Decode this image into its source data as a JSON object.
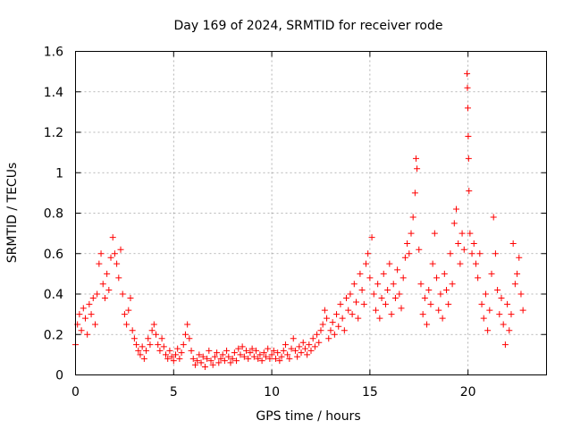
{
  "chart_data": {
    "type": "scatter",
    "title": "Day 169 of 2024, SRMTID for receiver rode",
    "xlabel": "GPS time / hours",
    "ylabel": "SRMTID / TECUs",
    "xlim": [
      0,
      24
    ],
    "ylim": [
      0,
      1.6
    ],
    "x_ticks": [
      0,
      5,
      10,
      15,
      20
    ],
    "x_tick_labels": [
      "0",
      "5",
      "10",
      "15",
      "20"
    ],
    "y_ticks": [
      0,
      0.2,
      0.4,
      0.6,
      0.8,
      1,
      1.2,
      1.4,
      1.6
    ],
    "y_tick_labels": [
      "0",
      "0.2",
      "0.4",
      "0.6",
      "0.8",
      "1",
      "1.2",
      "1.4",
      "1.6"
    ],
    "grid": true,
    "marker": "+",
    "color": "#ff0000",
    "series": [
      {
        "name": "SRMTID",
        "points": [
          [
            0.0,
            0.15
          ],
          [
            0.1,
            0.25
          ],
          [
            0.2,
            0.3
          ],
          [
            0.3,
            0.22
          ],
          [
            0.4,
            0.33
          ],
          [
            0.5,
            0.28
          ],
          [
            0.6,
            0.2
          ],
          [
            0.7,
            0.35
          ],
          [
            0.8,
            0.3
          ],
          [
            0.9,
            0.38
          ],
          [
            1.0,
            0.25
          ],
          [
            1.1,
            0.4
          ],
          [
            1.2,
            0.55
          ],
          [
            1.3,
            0.6
          ],
          [
            1.4,
            0.45
          ],
          [
            1.5,
            0.38
          ],
          [
            1.6,
            0.5
          ],
          [
            1.7,
            0.42
          ],
          [
            1.8,
            0.58
          ],
          [
            1.9,
            0.68
          ],
          [
            2.0,
            0.6
          ],
          [
            2.1,
            0.55
          ],
          [
            2.2,
            0.48
          ],
          [
            2.3,
            0.62
          ],
          [
            2.4,
            0.4
          ],
          [
            2.5,
            0.3
          ],
          [
            2.6,
            0.25
          ],
          [
            2.7,
            0.32
          ],
          [
            2.8,
            0.38
          ],
          [
            2.9,
            0.22
          ],
          [
            3.0,
            0.18
          ],
          [
            3.1,
            0.15
          ],
          [
            3.2,
            0.12
          ],
          [
            3.3,
            0.1
          ],
          [
            3.4,
            0.14
          ],
          [
            3.5,
            0.08
          ],
          [
            3.6,
            0.12
          ],
          [
            3.7,
            0.18
          ],
          [
            3.8,
            0.15
          ],
          [
            3.9,
            0.22
          ],
          [
            4.0,
            0.25
          ],
          [
            4.1,
            0.2
          ],
          [
            4.2,
            0.15
          ],
          [
            4.3,
            0.12
          ],
          [
            4.4,
            0.18
          ],
          [
            4.5,
            0.14
          ],
          [
            4.6,
            0.1
          ],
          [
            4.7,
            0.08
          ],
          [
            4.8,
            0.12
          ],
          [
            4.9,
            0.09
          ],
          [
            5.0,
            0.07
          ],
          [
            5.1,
            0.1
          ],
          [
            5.2,
            0.13
          ],
          [
            5.3,
            0.08
          ],
          [
            5.4,
            0.11
          ],
          [
            5.5,
            0.15
          ],
          [
            5.6,
            0.2
          ],
          [
            5.7,
            0.25
          ],
          [
            5.8,
            0.18
          ],
          [
            5.9,
            0.12
          ],
          [
            6.0,
            0.08
          ],
          [
            6.1,
            0.05
          ],
          [
            6.2,
            0.07
          ],
          [
            6.3,
            0.1
          ],
          [
            6.4,
            0.06
          ],
          [
            6.5,
            0.09
          ],
          [
            6.6,
            0.04
          ],
          [
            6.7,
            0.08
          ],
          [
            6.8,
            0.12
          ],
          [
            6.9,
            0.07
          ],
          [
            7.0,
            0.05
          ],
          [
            7.1,
            0.09
          ],
          [
            7.2,
            0.11
          ],
          [
            7.3,
            0.06
          ],
          [
            7.4,
            0.08
          ],
          [
            7.5,
            0.1
          ],
          [
            7.6,
            0.07
          ],
          [
            7.7,
            0.12
          ],
          [
            7.8,
            0.09
          ],
          [
            7.9,
            0.06
          ],
          [
            8.0,
            0.08
          ],
          [
            8.1,
            0.11
          ],
          [
            8.2,
            0.07
          ],
          [
            8.3,
            0.13
          ],
          [
            8.4,
            0.1
          ],
          [
            8.5,
            0.14
          ],
          [
            8.6,
            0.09
          ],
          [
            8.7,
            0.12
          ],
          [
            8.8,
            0.08
          ],
          [
            8.9,
            0.11
          ],
          [
            9.0,
            0.13
          ],
          [
            9.1,
            0.09
          ],
          [
            9.2,
            0.12
          ],
          [
            9.3,
            0.08
          ],
          [
            9.4,
            0.1
          ],
          [
            9.5,
            0.07
          ],
          [
            9.6,
            0.11
          ],
          [
            9.7,
            0.09
          ],
          [
            9.8,
            0.13
          ],
          [
            9.9,
            0.08
          ],
          [
            10.0,
            0.1
          ],
          [
            10.1,
            0.12
          ],
          [
            10.2,
            0.08
          ],
          [
            10.3,
            0.11
          ],
          [
            10.4,
            0.07
          ],
          [
            10.5,
            0.09
          ],
          [
            10.6,
            0.12
          ],
          [
            10.7,
            0.15
          ],
          [
            10.8,
            0.1
          ],
          [
            10.9,
            0.08
          ],
          [
            11.0,
            0.13
          ],
          [
            11.1,
            0.18
          ],
          [
            11.2,
            0.12
          ],
          [
            11.3,
            0.09
          ],
          [
            11.4,
            0.14
          ],
          [
            11.5,
            0.11
          ],
          [
            11.6,
            0.16
          ],
          [
            11.7,
            0.13
          ],
          [
            11.8,
            0.1
          ],
          [
            11.9,
            0.15
          ],
          [
            12.0,
            0.12
          ],
          [
            12.1,
            0.18
          ],
          [
            12.2,
            0.14
          ],
          [
            12.3,
            0.2
          ],
          [
            12.4,
            0.16
          ],
          [
            12.5,
            0.22
          ],
          [
            12.6,
            0.25
          ],
          [
            12.7,
            0.32
          ],
          [
            12.8,
            0.28
          ],
          [
            12.9,
            0.18
          ],
          [
            13.0,
            0.22
          ],
          [
            13.1,
            0.26
          ],
          [
            13.2,
            0.2
          ],
          [
            13.3,
            0.3
          ],
          [
            13.4,
            0.24
          ],
          [
            13.5,
            0.35
          ],
          [
            13.6,
            0.28
          ],
          [
            13.7,
            0.22
          ],
          [
            13.8,
            0.38
          ],
          [
            13.9,
            0.32
          ],
          [
            14.0,
            0.4
          ],
          [
            14.1,
            0.3
          ],
          [
            14.2,
            0.45
          ],
          [
            14.3,
            0.36
          ],
          [
            14.4,
            0.28
          ],
          [
            14.5,
            0.5
          ],
          [
            14.6,
            0.42
          ],
          [
            14.7,
            0.35
          ],
          [
            14.8,
            0.55
          ],
          [
            14.9,
            0.6
          ],
          [
            15.0,
            0.48
          ],
          [
            15.1,
            0.68
          ],
          [
            15.2,
            0.4
          ],
          [
            15.3,
            0.32
          ],
          [
            15.4,
            0.45
          ],
          [
            15.5,
            0.28
          ],
          [
            15.6,
            0.38
          ],
          [
            15.7,
            0.5
          ],
          [
            15.8,
            0.35
          ],
          [
            15.9,
            0.42
          ],
          [
            16.0,
            0.55
          ],
          [
            16.1,
            0.3
          ],
          [
            16.2,
            0.45
          ],
          [
            16.3,
            0.38
          ],
          [
            16.4,
            0.52
          ],
          [
            16.5,
            0.4
          ],
          [
            16.6,
            0.33
          ],
          [
            16.7,
            0.48
          ],
          [
            16.8,
            0.58
          ],
          [
            16.9,
            0.65
          ],
          [
            17.0,
            0.6
          ],
          [
            17.1,
            0.7
          ],
          [
            17.2,
            0.78
          ],
          [
            17.3,
            0.9
          ],
          [
            17.35,
            1.07
          ],
          [
            17.4,
            1.02
          ],
          [
            17.5,
            0.62
          ],
          [
            17.6,
            0.45
          ],
          [
            17.7,
            0.3
          ],
          [
            17.8,
            0.38
          ],
          [
            17.9,
            0.25
          ],
          [
            18.0,
            0.42
          ],
          [
            18.1,
            0.35
          ],
          [
            18.2,
            0.55
          ],
          [
            18.3,
            0.7
          ],
          [
            18.4,
            0.48
          ],
          [
            18.5,
            0.32
          ],
          [
            18.6,
            0.4
          ],
          [
            18.7,
            0.28
          ],
          [
            18.8,
            0.5
          ],
          [
            18.9,
            0.42
          ],
          [
            19.0,
            0.35
          ],
          [
            19.1,
            0.6
          ],
          [
            19.2,
            0.45
          ],
          [
            19.3,
            0.75
          ],
          [
            19.4,
            0.82
          ],
          [
            19.5,
            0.65
          ],
          [
            19.6,
            0.55
          ],
          [
            19.7,
            0.7
          ],
          [
            19.8,
            0.62
          ],
          [
            19.95,
            1.49
          ],
          [
            19.97,
            1.42
          ],
          [
            19.99,
            1.32
          ],
          [
            20.01,
            1.18
          ],
          [
            20.03,
            1.07
          ],
          [
            20.05,
            0.91
          ],
          [
            20.1,
            0.7
          ],
          [
            20.2,
            0.6
          ],
          [
            20.3,
            0.65
          ],
          [
            20.4,
            0.55
          ],
          [
            20.5,
            0.48
          ],
          [
            20.6,
            0.6
          ],
          [
            20.7,
            0.35
          ],
          [
            20.8,
            0.28
          ],
          [
            20.9,
            0.4
          ],
          [
            21.0,
            0.22
          ],
          [
            21.1,
            0.32
          ],
          [
            21.2,
            0.5
          ],
          [
            21.3,
            0.78
          ],
          [
            21.4,
            0.6
          ],
          [
            21.5,
            0.42
          ],
          [
            21.6,
            0.3
          ],
          [
            21.7,
            0.38
          ],
          [
            21.8,
            0.25
          ],
          [
            21.9,
            0.15
          ],
          [
            22.0,
            0.35
          ],
          [
            22.1,
            0.22
          ],
          [
            22.2,
            0.3
          ],
          [
            22.3,
            0.65
          ],
          [
            22.4,
            0.45
          ],
          [
            22.5,
            0.5
          ],
          [
            22.6,
            0.58
          ],
          [
            22.7,
            0.4
          ],
          [
            22.8,
            0.32
          ]
        ]
      }
    ]
  }
}
